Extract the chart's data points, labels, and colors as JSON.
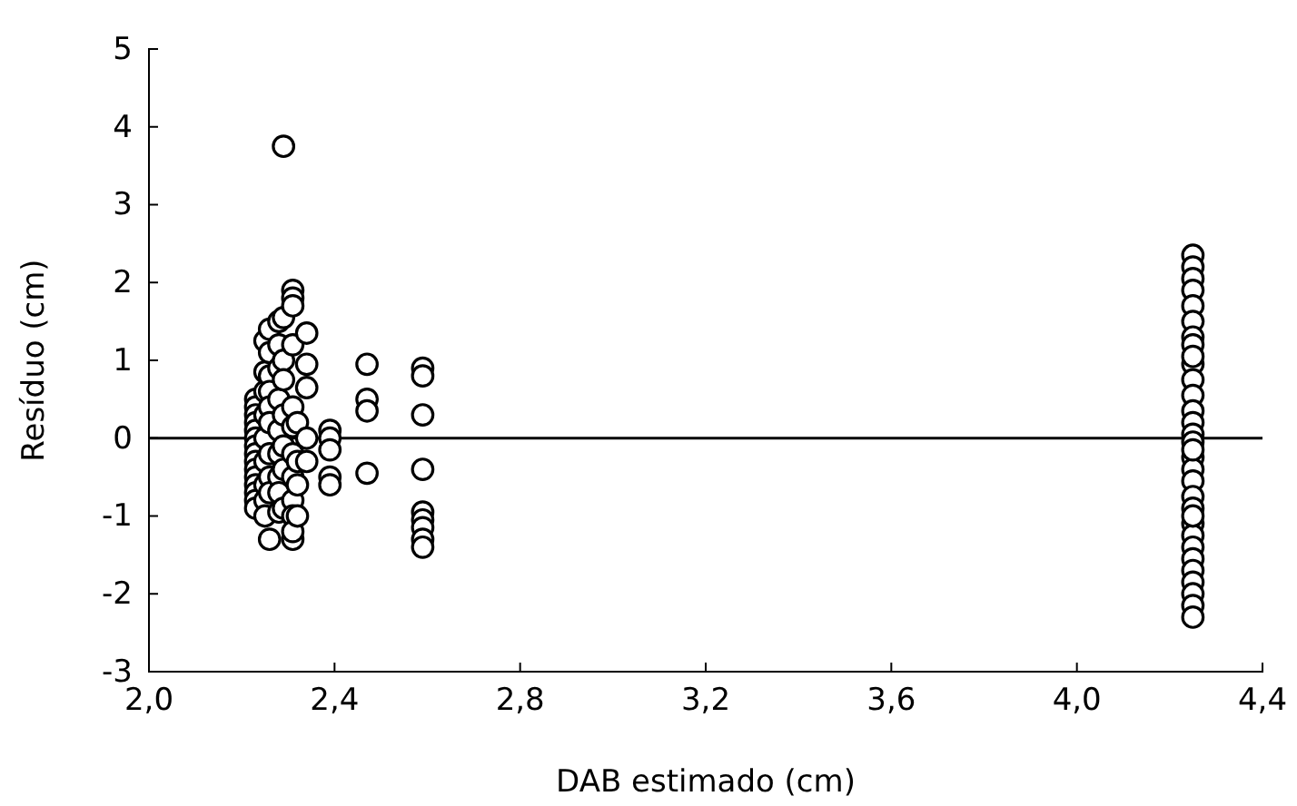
{
  "chart_data": {
    "type": "scatter",
    "xlabel": "DAB estimado (cm)",
    "ylabel": "Resíduo (cm)",
    "xlim": [
      2.0,
      4.4
    ],
    "ylim": [
      -3,
      5
    ],
    "xticks": [
      {
        "value": 2.0,
        "label": "2,0"
      },
      {
        "value": 2.4,
        "label": "2,4"
      },
      {
        "value": 2.8,
        "label": "2,8"
      },
      {
        "value": 3.2,
        "label": "3,2"
      },
      {
        "value": 3.6,
        "label": "3,6"
      },
      {
        "value": 4.0,
        "label": "4,0"
      },
      {
        "value": 4.4,
        "label": "4,4"
      }
    ],
    "yticks": [
      -3,
      -2,
      -1,
      0,
      1,
      2,
      3,
      4,
      5
    ],
    "marker": "circle",
    "grid": false,
    "ref_lines": [
      {
        "axis": "y",
        "value": 0,
        "label": null,
        "color": "#000000"
      }
    ],
    "series": [
      {
        "color": "#000000",
        "x": [
          2.23,
          2.23,
          2.23,
          2.23,
          2.23,
          2.23,
          2.23,
          2.23,
          2.23,
          2.23,
          2.23,
          2.23,
          2.23,
          2.23,
          2.23,
          2.25,
          2.25,
          2.25,
          2.25,
          2.25,
          2.25,
          2.25,
          2.25,
          2.25,
          2.26,
          2.26,
          2.26,
          2.26,
          2.26,
          2.26,
          2.26,
          2.26,
          2.26,
          2.26,
          2.28,
          2.28,
          2.28,
          2.28,
          2.28,
          2.28,
          2.28,
          2.28,
          2.28,
          2.29,
          2.29,
          2.29,
          2.29,
          2.29,
          2.29,
          2.29,
          2.29,
          2.31,
          2.31,
          2.31,
          2.31,
          2.31,
          2.31,
          2.31,
          2.31,
          2.31,
          2.31,
          2.31,
          2.31,
          2.32,
          2.32,
          2.32,
          2.32,
          2.34,
          2.34,
          2.34,
          2.34,
          2.34,
          2.39,
          2.39,
          2.39,
          2.39,
          2.39,
          2.47,
          2.47,
          2.47,
          2.47,
          2.59,
          2.59,
          2.59,
          2.59,
          2.59,
          2.59,
          2.59,
          2.59,
          2.59,
          4.25,
          4.25,
          4.25,
          4.25,
          4.25,
          4.25,
          4.25,
          4.25,
          4.25,
          4.25,
          4.25,
          4.25,
          4.25,
          4.25,
          4.25,
          4.25,
          4.25,
          4.25,
          4.25,
          4.25,
          4.25,
          4.25,
          4.25,
          4.25,
          4.25,
          4.25,
          4.25,
          4.25,
          4.25,
          4.25,
          4.25,
          4.25
        ],
        "values": [
          0.5,
          0.4,
          0.3,
          0.2,
          0.1,
          0,
          -0.1,
          -0.2,
          -0.3,
          -0.4,
          -0.5,
          -0.6,
          -0.7,
          -0.8,
          -0.9,
          1.25,
          0.85,
          0.6,
          0.3,
          0,
          -0.3,
          -0.6,
          -0.8,
          -1.0,
          1.4,
          1.1,
          0.8,
          0.6,
          0.4,
          0.2,
          -0.2,
          -0.5,
          -0.7,
          -1.3,
          1.5,
          1.2,
          0.9,
          0.5,
          0.1,
          -0.2,
          -0.5,
          -0.7,
          -0.95,
          3.75,
          1.55,
          1.0,
          0.75,
          0.3,
          -0.1,
          -0.4,
          -0.9,
          1.9,
          1.8,
          1.7,
          1.2,
          0.4,
          0.15,
          -0.2,
          -0.5,
          -0.8,
          -1.0,
          -1.3,
          -1.2,
          0.2,
          -0.3,
          -0.6,
          -1.0,
          1.35,
          0.95,
          0.65,
          0,
          -0.3,
          0.1,
          0,
          -0.15,
          -0.5,
          -0.6,
          0.95,
          0.5,
          0.35,
          -0.45,
          0.9,
          0.8,
          0.3,
          -0.4,
          -0.95,
          -1.05,
          -1.15,
          -1.3,
          -1.4,
          2.35,
          2.2,
          2.05,
          1.9,
          1.7,
          1.5,
          1.3,
          1.2,
          0.95,
          0.75,
          0.55,
          0.35,
          0.2,
          0.05,
          -0.05,
          -0.25,
          -0.4,
          -0.55,
          -0.75,
          -0.9,
          -1.1,
          -1.25,
          -1.4,
          -1.55,
          -1.7,
          -1.85,
          -2.0,
          -2.15,
          -2.3,
          1.05,
          -0.15,
          -1.0
        ]
      }
    ]
  }
}
